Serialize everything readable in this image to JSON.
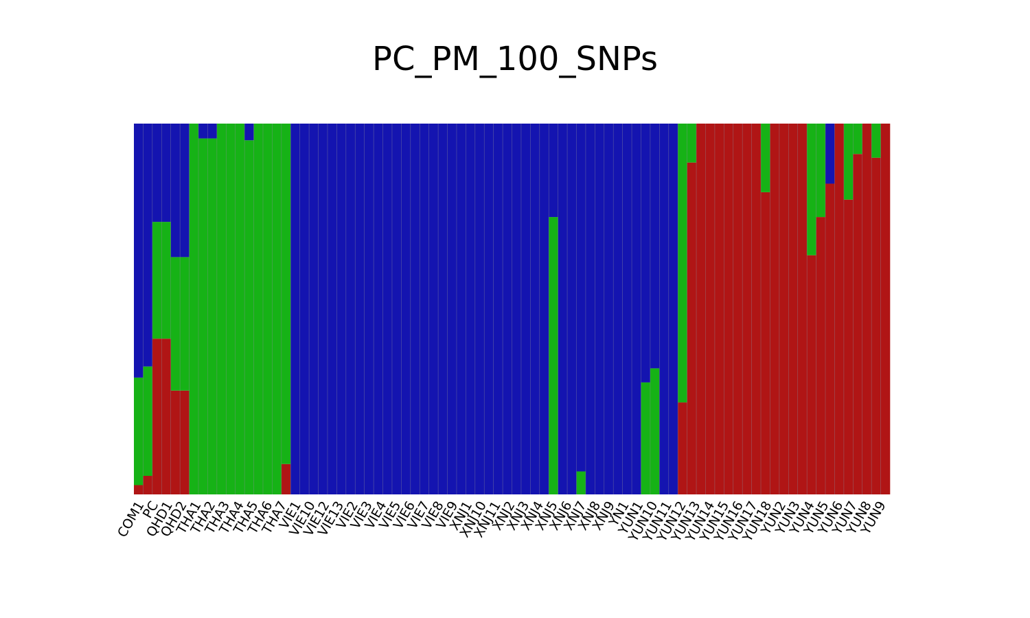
{
  "chart_data": {
    "type": "bar",
    "stacked": true,
    "normalized": true,
    "title": "PC_PM_100_SNPs",
    "xlabel": "",
    "ylabel": "",
    "ylim": [
      0,
      1
    ],
    "grid": false,
    "legend": "none",
    "tick_labels": [
      "COM1",
      "PC",
      "QHD1",
      "QHD2",
      "THA1",
      "THA2",
      "THA3",
      "THA4",
      "THA5",
      "THA6",
      "THA7",
      "VIE1",
      "VIE10",
      "VIE12",
      "VIE13",
      "VIE2",
      "VIE3",
      "VIE4",
      "VIE5",
      "VIE6",
      "VIE7",
      "VIE8",
      "VIE9",
      "XNJ1",
      "XNJ10",
      "XNJ11",
      "XNJ2",
      "XNJ3",
      "XNJ4",
      "XNJ5",
      "XNJ6",
      "XNJ7",
      "XNJ8",
      "XNJ9",
      "YN1",
      "YUN1",
      "YUN10",
      "YUN11",
      "YUN12",
      "YUN13",
      "YUN14",
      "YUN15",
      "YUN16",
      "YUN17",
      "YUN18",
      "YUN2",
      "YUN3",
      "YUN4",
      "YUN5",
      "YUN6",
      "YUN7",
      "YUN8",
      "YUN9"
    ],
    "colors": {
      "cluster_red": "#b01515",
      "cluster_green": "#16b216",
      "cluster_blue": "#1414b0"
    },
    "values": [
      {
        "red": 0.025,
        "green": 0.29
      },
      {
        "red": 0.05,
        "green": 0.295
      },
      {
        "red": 0.42,
        "green": 0.315
      },
      {
        "red": 0.42,
        "green": 0.315
      },
      {
        "red": 0.28,
        "green": 0.36
      },
      {
        "red": 0.28,
        "green": 0.36
      },
      {
        "red": 0.0,
        "green": 1.0
      },
      {
        "red": 0.0,
        "green": 0.96
      },
      {
        "red": 0.0,
        "green": 0.96
      },
      {
        "red": 0.0,
        "green": 1.0
      },
      {
        "red": 0.0,
        "green": 1.0
      },
      {
        "red": 0.0,
        "green": 1.0
      },
      {
        "red": 0.0,
        "green": 0.955
      },
      {
        "red": 0.0,
        "green": 1.0
      },
      {
        "red": 0.0,
        "green": 1.0
      },
      {
        "red": 0.0,
        "green": 1.0
      },
      {
        "red": 0.082,
        "green": 0.918
      },
      {
        "red": 0.0,
        "green": 0.0
      },
      {
        "red": 0.0,
        "green": 0.0
      },
      {
        "red": 0.0,
        "green": 0.0
      },
      {
        "red": 0.0,
        "green": 0.0
      },
      {
        "red": 0.0,
        "green": 0.0
      },
      {
        "red": 0.0,
        "green": 0.0
      },
      {
        "red": 0.0,
        "green": 0.0
      },
      {
        "red": 0.0,
        "green": 0.0
      },
      {
        "red": 0.0,
        "green": 0.0
      },
      {
        "red": 0.0,
        "green": 0.0
      },
      {
        "red": 0.0,
        "green": 0.0
      },
      {
        "red": 0.0,
        "green": 0.0
      },
      {
        "red": 0.0,
        "green": 0.0
      },
      {
        "red": 0.0,
        "green": 0.0
      },
      {
        "red": 0.0,
        "green": 0.0
      },
      {
        "red": 0.0,
        "green": 0.0
      },
      {
        "red": 0.0,
        "green": 0.0
      },
      {
        "red": 0.0,
        "green": 0.0
      },
      {
        "red": 0.0,
        "green": 0.0
      },
      {
        "red": 0.0,
        "green": 0.0
      },
      {
        "red": 0.0,
        "green": 0.0
      },
      {
        "red": 0.0,
        "green": 0.0
      },
      {
        "red": 0.0,
        "green": 0.0
      },
      {
        "red": 0.0,
        "green": 0.0
      },
      {
        "red": 0.0,
        "green": 0.0
      },
      {
        "red": 0.0,
        "green": 0.0
      },
      {
        "red": 0.0,
        "green": 0.0
      },
      {
        "red": 0.0,
        "green": 0.0
      },
      {
        "red": 0.0,
        "green": 0.748
      },
      {
        "red": 0.0,
        "green": 0.0
      },
      {
        "red": 0.0,
        "green": 0.0
      },
      {
        "red": 0.0,
        "green": 0.062
      },
      {
        "red": 0.0,
        "green": 0.0
      },
      {
        "red": 0.0,
        "green": 0.0
      },
      {
        "red": 0.0,
        "green": 0.0
      },
      {
        "red": 0.0,
        "green": 0.0
      },
      {
        "red": 0.0,
        "green": 0.0
      },
      {
        "red": 0.0,
        "green": 0.0
      },
      {
        "red": 0.0,
        "green": 0.302
      },
      {
        "red": 0.0,
        "green": 0.34
      },
      {
        "red": 0.0,
        "green": 0.0
      },
      {
        "red": 0.0,
        "green": 0.0
      },
      {
        "red": 0.248,
        "green": 0.752
      },
      {
        "red": 0.895,
        "green": 0.105
      },
      {
        "red": 1.0,
        "green": 0.0
      },
      {
        "red": 1.0,
        "green": 0.0
      },
      {
        "red": 1.0,
        "green": 0.0
      },
      {
        "red": 1.0,
        "green": 0.0
      },
      {
        "red": 1.0,
        "green": 0.0
      },
      {
        "red": 1.0,
        "green": 0.0
      },
      {
        "red": 1.0,
        "green": 0.0
      },
      {
        "red": 0.815,
        "green": 0.185
      },
      {
        "red": 1.0,
        "green": 0.0
      },
      {
        "red": 1.0,
        "green": 0.0
      },
      {
        "red": 1.0,
        "green": 0.0
      },
      {
        "red": 1.0,
        "green": 0.0
      },
      {
        "red": 0.645,
        "green": 0.355
      },
      {
        "red": 0.748,
        "green": 0.252
      },
      {
        "red": 0.838,
        "green": 0.0
      },
      {
        "red": 1.0,
        "green": 0.0
      },
      {
        "red": 0.795,
        "green": 0.205
      },
      {
        "red": 0.918,
        "green": 0.082
      },
      {
        "red": 1.0,
        "green": 0.0
      },
      {
        "red": 0.908,
        "green": 0.092
      },
      {
        "red": 1.0,
        "green": 0.0
      }
    ]
  }
}
